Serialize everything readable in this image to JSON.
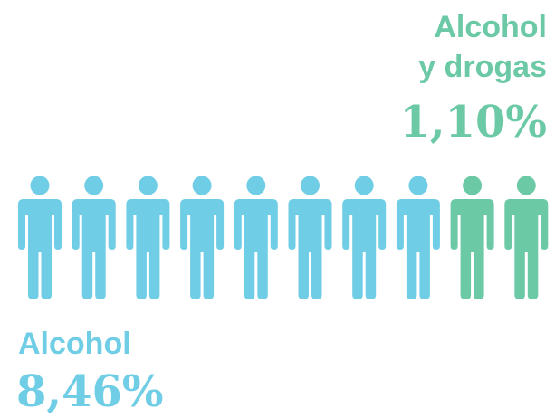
{
  "colors": {
    "alcohol": "#6fcde5",
    "alcohol_drugs": "#6cc9a5"
  },
  "labels": {
    "alcohol_drugs_line1": "Alcohol",
    "alcohol_drugs_line2": "y drogas",
    "alcohol_drugs_value": "1,10%",
    "alcohol": "Alcohol",
    "alcohol_value": "8,46%"
  },
  "chart_data": {
    "type": "pictogram",
    "icon": "person-icon",
    "total_figures": 10,
    "series": [
      {
        "name": "Alcohol",
        "value_label": "8,46%",
        "figures": 8,
        "color": "#6fcde5"
      },
      {
        "name": "Alcohol y drogas",
        "value_label": "1,10%",
        "figures": 2,
        "color": "#6cc9a5"
      }
    ]
  }
}
